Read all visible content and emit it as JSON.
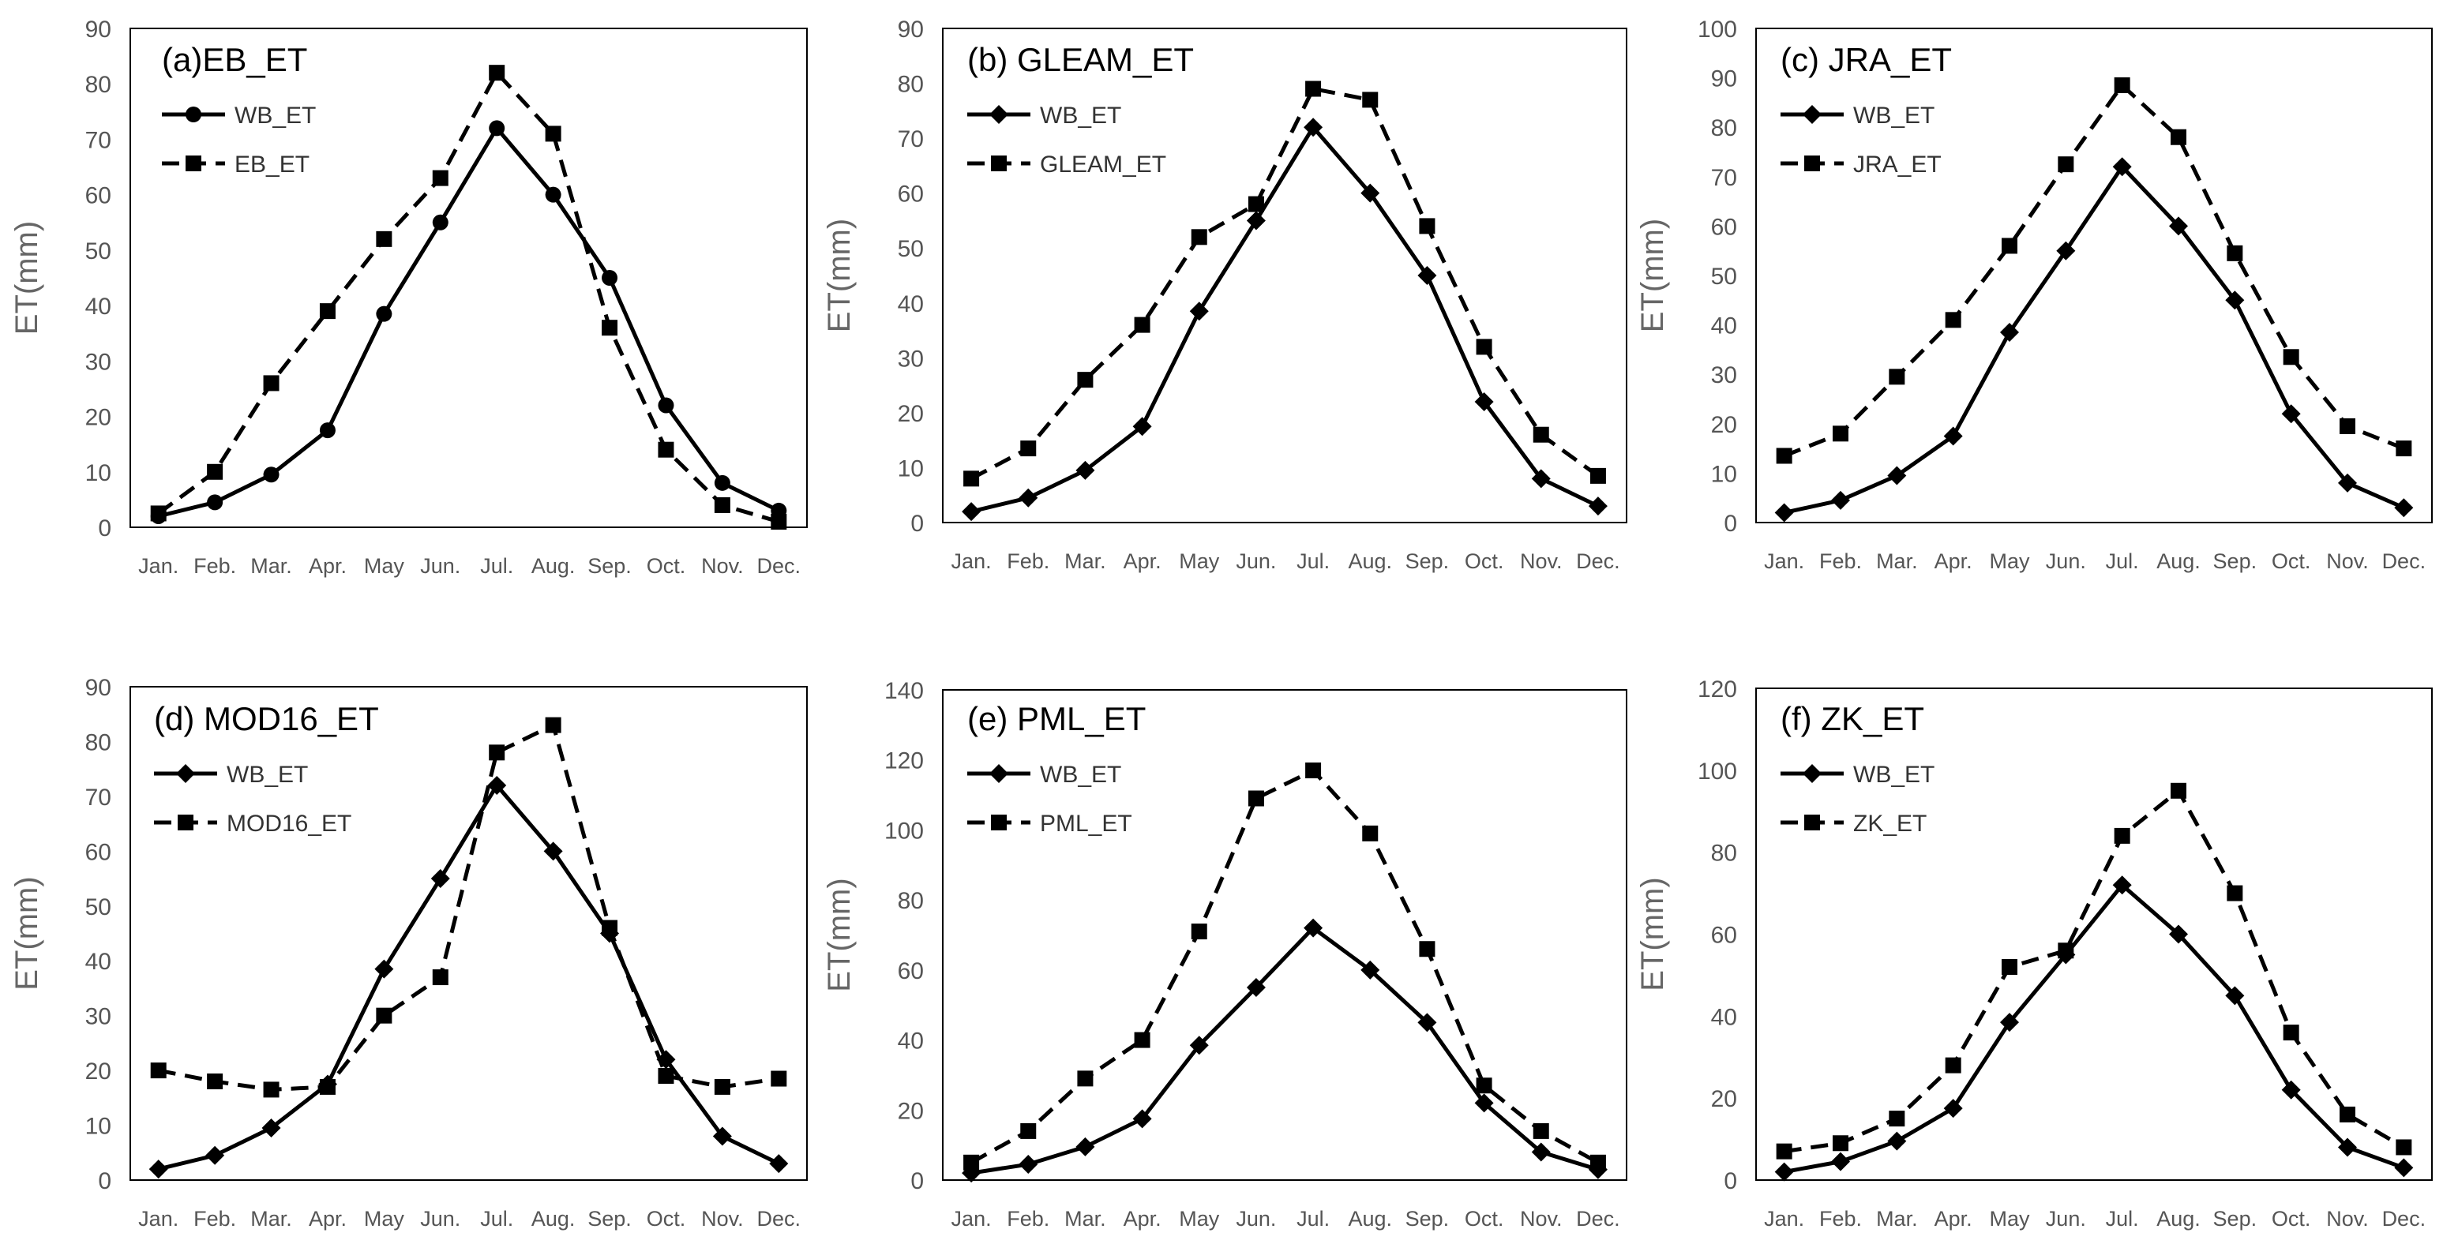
{
  "figure": {
    "x_categories": [
      "Jan.",
      "Feb.",
      "Mar.",
      "Apr.",
      "May",
      "Jun.",
      "Jul.",
      "Aug.",
      "Sep.",
      "Oct.",
      "Nov.",
      "Dec."
    ]
  },
  "chart_data": [
    {
      "type": "line",
      "title": "(a)EB_ET",
      "xlabel": "",
      "ylabel": "ET(mm)",
      "ylim": [
        0,
        90
      ],
      "yticks": [
        0,
        10,
        20,
        30,
        40,
        50,
        60,
        70,
        80,
        90
      ],
      "legend_position": "top-left",
      "series": [
        {
          "name": "WB_ET",
          "marker": "circle",
          "style": "solid",
          "values": [
            2,
            4.5,
            9.5,
            17.5,
            38.5,
            55,
            72,
            60,
            45,
            22,
            8,
            3
          ]
        },
        {
          "name": "EB_ET",
          "marker": "square",
          "style": "dashed",
          "values": [
            2.5,
            10,
            26,
            39,
            52,
            63,
            82,
            71,
            36,
            14,
            4,
            1
          ]
        }
      ]
    },
    {
      "type": "line",
      "title": "(b) GLEAM_ET",
      "xlabel": "",
      "ylabel": "ET(mm)",
      "ylim": [
        0,
        90
      ],
      "yticks": [
        0,
        10,
        20,
        30,
        40,
        50,
        60,
        70,
        80,
        90
      ],
      "legend_position": "top-left",
      "series": [
        {
          "name": "WB_ET",
          "marker": "diamond",
          "style": "solid",
          "values": [
            2,
            4.5,
            9.5,
            17.5,
            38.5,
            55,
            72,
            60,
            45,
            22,
            8,
            3
          ]
        },
        {
          "name": "GLEAM_ET",
          "marker": "square",
          "style": "dashed",
          "values": [
            8,
            13.5,
            26,
            36,
            52,
            58,
            79,
            77,
            54,
            32,
            16,
            8.5
          ]
        }
      ]
    },
    {
      "type": "line",
      "title": "(c) JRA_ET",
      "xlabel": "",
      "ylabel": "ET(mm)",
      "ylim": [
        0,
        100
      ],
      "yticks": [
        0,
        10,
        20,
        30,
        40,
        50,
        60,
        70,
        80,
        90,
        100
      ],
      "legend_position": "top-left",
      "series": [
        {
          "name": "WB_ET",
          "marker": "diamond",
          "style": "solid",
          "values": [
            2,
            4.5,
            9.5,
            17.5,
            38.5,
            55,
            72,
            60,
            45,
            22,
            8,
            3
          ]
        },
        {
          "name": "JRA_ET",
          "marker": "square",
          "style": "dashed",
          "values": [
            13.5,
            18,
            29.5,
            41,
            56,
            72.5,
            88.5,
            78,
            54.5,
            33.5,
            19.5,
            15
          ]
        }
      ]
    },
    {
      "type": "line",
      "title": "(d) MOD16_ET",
      "xlabel": "",
      "ylabel": "ET(mm)",
      "ylim": [
        0,
        90
      ],
      "yticks": [
        0,
        10,
        20,
        30,
        40,
        50,
        60,
        70,
        80,
        90
      ],
      "legend_position": "top-left",
      "series": [
        {
          "name": "WB_ET",
          "marker": "diamond",
          "style": "solid",
          "values": [
            2,
            4.5,
            9.5,
            17.5,
            38.5,
            55,
            72,
            60,
            45,
            22,
            8,
            3
          ]
        },
        {
          "name": "MOD16_ET",
          "marker": "square",
          "style": "dashed",
          "values": [
            20,
            18,
            16.5,
            17,
            30,
            37,
            78,
            83,
            46,
            19,
            17,
            18.5
          ]
        }
      ]
    },
    {
      "type": "line",
      "title": "(e) PML_ET",
      "xlabel": "",
      "ylabel": "ET(mm)",
      "ylim": [
        0,
        140
      ],
      "yticks": [
        0,
        20,
        40,
        60,
        80,
        100,
        120,
        140
      ],
      "legend_position": "top-left",
      "series": [
        {
          "name": "WB_ET",
          "marker": "diamond",
          "style": "solid",
          "values": [
            2,
            4.5,
            9.5,
            17.5,
            38.5,
            55,
            72,
            60,
            45,
            22,
            8,
            3
          ]
        },
        {
          "name": "PML_ET",
          "marker": "square",
          "style": "dashed",
          "values": [
            5,
            14,
            29,
            40,
            71,
            109,
            117,
            99,
            66,
            27,
            14,
            5
          ]
        }
      ]
    },
    {
      "type": "line",
      "title": "(f) ZK_ET",
      "xlabel": "",
      "ylabel": "ET(mm)",
      "ylim": [
        0,
        120
      ],
      "yticks": [
        0,
        20,
        40,
        60,
        80,
        100,
        120
      ],
      "legend_position": "top-left",
      "series": [
        {
          "name": "WB_ET",
          "marker": "diamond",
          "style": "solid",
          "values": [
            2,
            4.5,
            9.5,
            17.5,
            38.5,
            55,
            72,
            60,
            45,
            22,
            8,
            3
          ]
        },
        {
          "name": "ZK_ET",
          "marker": "square",
          "style": "dashed",
          "values": [
            7,
            9,
            15,
            28,
            52,
            56,
            84,
            95,
            70,
            36,
            16,
            8
          ]
        }
      ]
    }
  ]
}
